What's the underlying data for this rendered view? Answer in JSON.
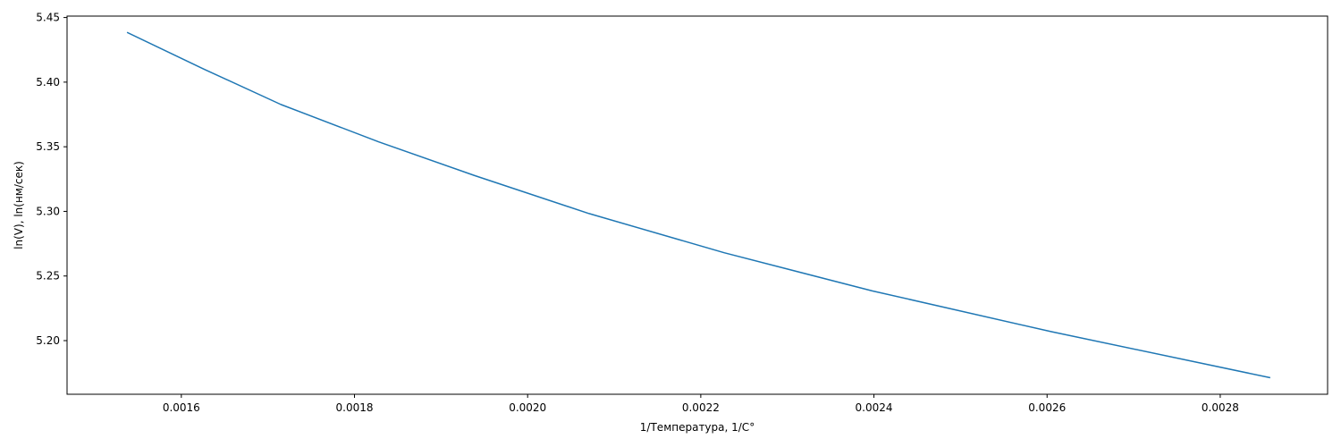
{
  "chart_data": {
    "type": "line",
    "title": "",
    "xlabel": "1/Температура, 1/C°",
    "ylabel": "ln(V), ln(нм/сек)",
    "xlim": [
      0.001468,
      0.002924
    ],
    "ylim": [
      5.1585,
      5.4511
    ],
    "grid": false,
    "x_ticks": [
      {
        "value": 0.0016,
        "label": "0.0016"
      },
      {
        "value": 0.0018,
        "label": "0.0018"
      },
      {
        "value": 0.002,
        "label": "0.0020"
      },
      {
        "value": 0.0022,
        "label": "0.0022"
      },
      {
        "value": 0.0024,
        "label": "0.0024"
      },
      {
        "value": 0.0026,
        "label": "0.0026"
      },
      {
        "value": 0.0028,
        "label": "0.0028"
      }
    ],
    "y_ticks": [
      {
        "value": 5.2,
        "label": "5.20"
      },
      {
        "value": 5.25,
        "label": "5.25"
      },
      {
        "value": 5.3,
        "label": "5.30"
      },
      {
        "value": 5.35,
        "label": "5.35"
      },
      {
        "value": 5.4,
        "label": "5.40"
      },
      {
        "value": 5.45,
        "label": "5.45"
      }
    ],
    "series": [
      {
        "color": "#1f77b4",
        "points": [
          [
            0.001538,
            5.4383
          ],
          [
            0.001626,
            5.4101
          ],
          [
            0.001715,
            5.3827
          ],
          [
            0.001828,
            5.3538
          ],
          [
            0.001938,
            5.3279
          ],
          [
            0.002071,
            5.2983
          ],
          [
            0.002227,
            5.268
          ],
          [
            0.002398,
            5.2385
          ],
          [
            0.002605,
            5.2069
          ],
          [
            0.002857,
            5.1714
          ]
        ]
      }
    ]
  }
}
